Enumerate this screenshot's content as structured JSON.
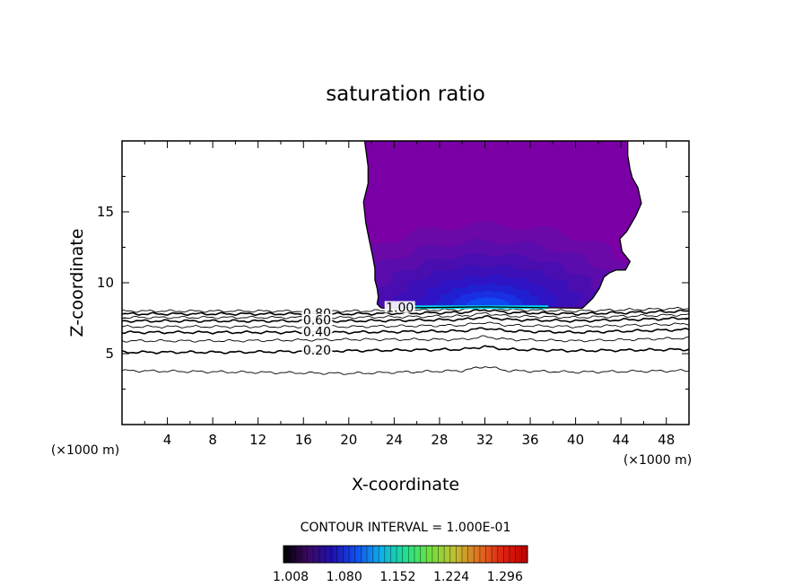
{
  "chart_data": {
    "type": "heatmap",
    "title": "saturation ratio",
    "xlabel": "X-coordinate",
    "ylabel": "Z-coordinate",
    "x_unit": "(×1000 m)",
    "xlim": [
      0,
      50
    ],
    "ylim": [
      0,
      20
    ],
    "x_ticks": [
      4,
      8,
      12,
      16,
      20,
      24,
      28,
      32,
      36,
      40,
      44,
      48
    ],
    "y_ticks": [
      5,
      10,
      15
    ],
    "contour_interval_text": "CONTOUR INTERVAL =  1.000E-01",
    "contour_labels": [
      {
        "text": "0.80",
        "x": 17.2,
        "z": 7.8
      },
      {
        "text": "0.60",
        "x": 17.2,
        "z": 7.3
      },
      {
        "text": "0.40",
        "x": 17.2,
        "z": 6.5
      },
      {
        "text": "0.20",
        "x": 17.2,
        "z": 5.2
      },
      {
        "text": "1.00",
        "x": 24.5,
        "z": 8.2
      }
    ],
    "contours": [
      {
        "level": 0.1,
        "x": [
          0,
          10,
          20,
          30,
          32,
          34,
          40,
          50
        ],
        "z": [
          3.8,
          3.7,
          3.6,
          3.8,
          4.1,
          3.8,
          3.7,
          3.8
        ]
      },
      {
        "level": 0.2,
        "x": [
          0,
          10,
          20,
          30,
          32,
          34,
          40,
          50
        ],
        "z": [
          5.1,
          5.1,
          5.2,
          5.3,
          5.5,
          5.3,
          5.2,
          5.3
        ]
      },
      {
        "level": 0.3,
        "x": [
          0,
          10,
          20,
          30,
          32,
          34,
          40,
          50
        ],
        "z": [
          5.9,
          5.9,
          6.0,
          6.0,
          6.2,
          6.0,
          5.9,
          6.1
        ]
      },
      {
        "level": 0.4,
        "x": [
          0,
          10,
          20,
          30,
          32,
          34,
          40,
          50
        ],
        "z": [
          6.5,
          6.5,
          6.5,
          6.6,
          6.8,
          6.6,
          6.5,
          6.7
        ]
      },
      {
        "level": 0.5,
        "x": [
          0,
          10,
          20,
          30,
          32,
          34,
          40,
          50
        ],
        "z": [
          6.9,
          6.9,
          6.9,
          7.0,
          7.2,
          7.0,
          6.9,
          7.1
        ]
      },
      {
        "level": 0.6,
        "x": [
          0,
          10,
          20,
          30,
          32,
          34,
          40,
          50
        ],
        "z": [
          7.3,
          7.3,
          7.3,
          7.4,
          7.6,
          7.4,
          7.3,
          7.5
        ]
      },
      {
        "level": 0.7,
        "x": [
          0,
          10,
          20,
          30,
          32,
          34,
          40,
          50
        ],
        "z": [
          7.55,
          7.55,
          7.55,
          7.65,
          7.85,
          7.65,
          7.55,
          7.75
        ]
      },
      {
        "level": 0.8,
        "x": [
          0,
          10,
          20,
          30,
          32,
          34,
          40,
          50
        ],
        "z": [
          7.8,
          7.8,
          7.8,
          7.9,
          8.1,
          7.9,
          7.8,
          8.0
        ]
      },
      {
        "level": 0.9,
        "x": [
          0,
          10,
          20,
          30,
          32,
          34,
          40,
          50
        ],
        "z": [
          8.0,
          8.0,
          8.0,
          8.1,
          8.3,
          8.1,
          8.0,
          8.2
        ]
      }
    ],
    "region_boundary": {
      "x": [
        21.4,
        21.7,
        21.7,
        21.3,
        21.5,
        21.8,
        22.1,
        22.3,
        22.3,
        22.5,
        22.6,
        22.5,
        22.8,
        23.0,
        32.0,
        40.6,
        41.5,
        42.1,
        42.5,
        43.0,
        43.6,
        44.4,
        44.8,
        44.1,
        43.9,
        44.5,
        45.3,
        45.8,
        45.5,
        45.0,
        44.8,
        44.6,
        44.6
      ],
      "z": [
        20.0,
        18.2,
        17.0,
        15.7,
        14.2,
        13.0,
        11.9,
        11.0,
        10.2,
        9.6,
        9.0,
        8.5,
        8.25,
        8.2,
        8.3,
        8.2,
        8.9,
        9.6,
        10.4,
        10.7,
        10.9,
        10.9,
        11.5,
        12.2,
        13.1,
        13.6,
        14.7,
        15.6,
        16.7,
        17.4,
        18.0,
        19.0,
        20.0
      ]
    },
    "fill_levels": [
      {
        "value": 1.008,
        "color": "#7a00a6",
        "cx": 32.5,
        "cz": 13.0,
        "rx": 0,
        "rz": 0
      },
      {
        "value": 1.016,
        "color": "#6a08a8",
        "cx": 32.3,
        "cz": 8.3,
        "rx": 14.8,
        "rz": 5.8
      },
      {
        "value": 1.024,
        "color": "#5a0cac",
        "cx": 32.3,
        "cz": 8.3,
        "rx": 12.5,
        "rz": 4.6
      },
      {
        "value": 1.032,
        "color": "#4a0eb0",
        "cx": 32.3,
        "cz": 8.3,
        "rx": 10.2,
        "rz": 3.7
      },
      {
        "value": 1.04,
        "color": "#3c10b8",
        "cx": 32.3,
        "cz": 8.3,
        "rx": 8.2,
        "rz": 2.9
      },
      {
        "value": 1.048,
        "color": "#2e14c4",
        "cx": 32.3,
        "cz": 8.3,
        "rx": 6.2,
        "rz": 2.2
      },
      {
        "value": 1.056,
        "color": "#2020d2",
        "cx": 32.3,
        "cz": 8.3,
        "rx": 4.6,
        "rz": 1.6
      },
      {
        "value": 1.064,
        "color": "#1830e2",
        "cx": 32.3,
        "cz": 8.3,
        "rx": 3.2,
        "rz": 1.1
      },
      {
        "value": 1.072,
        "color": "#1048f2",
        "cx": 32.3,
        "cz": 8.3,
        "rx": 2.0,
        "rz": 0.65
      }
    ],
    "cyan_band": {
      "x0": 25.0,
      "x1": 37.6,
      "z0": 8.15,
      "z1": 8.4,
      "color": "#00d8e8"
    },
    "colorbar": {
      "min": 1.008,
      "max": 1.336,
      "tick_labels": [
        "1.008",
        "1.080",
        "1.152",
        "1.224",
        "1.296"
      ],
      "tick_values": [
        1.008,
        1.08,
        1.152,
        1.224,
        1.296
      ],
      "stops": [
        "#000000",
        "#3a0a60",
        "#2010b0",
        "#1050f0",
        "#10b0e8",
        "#20e090",
        "#70e040",
        "#c0c030",
        "#e07020",
        "#e02010",
        "#c00000"
      ]
    },
    "grid": false
  }
}
